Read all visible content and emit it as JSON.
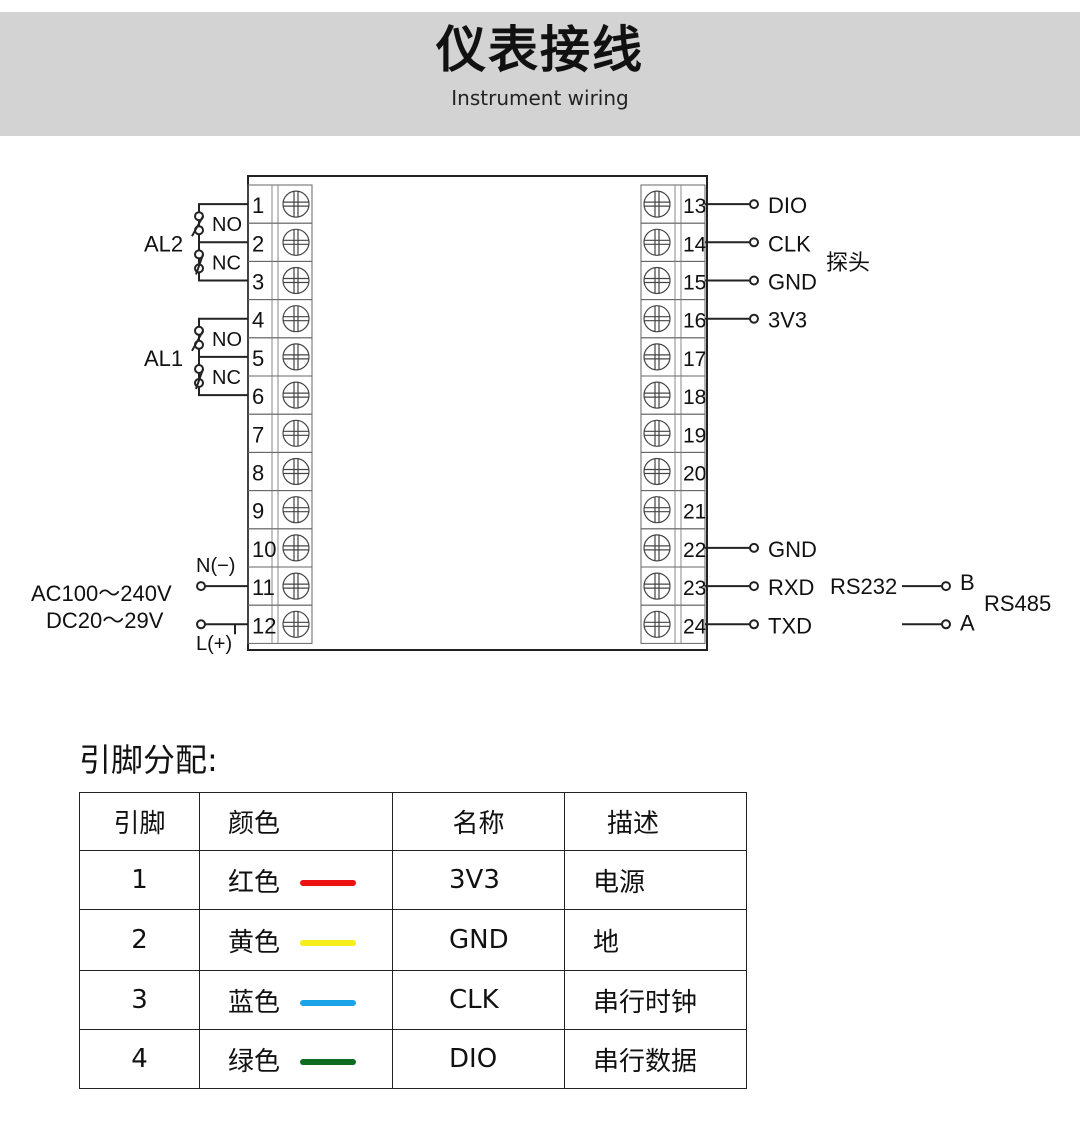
{
  "header": {
    "title": "仪表接线",
    "subtitle": "Instrument wiring"
  },
  "diagram": {
    "left_terminals": [
      "1",
      "2",
      "3",
      "4",
      "5",
      "6",
      "7",
      "8",
      "9",
      "10",
      "11",
      "12"
    ],
    "right_terminals": [
      "13",
      "14",
      "15",
      "16",
      "17",
      "18",
      "19",
      "20",
      "21",
      "22",
      "23",
      "24"
    ],
    "relays": [
      {
        "name": "AL2",
        "no": "NO",
        "nc": "NC"
      },
      {
        "name": "AL1",
        "no": "NO",
        "nc": "NC"
      }
    ],
    "power": {
      "neutral": "N(−)",
      "line": "L(+)",
      "ac": "AC100～240V",
      "dc": "DC20～29V"
    },
    "right_labels": {
      "13": "DIO",
      "14": "CLK",
      "15": "GND",
      "16": "3V3",
      "22": "GND",
      "23": "RXD",
      "24": "TXD"
    },
    "probe_label": "探头",
    "rs232": "RS232",
    "rs485": "RS485",
    "rs485_b": "B",
    "rs485_a": "A"
  },
  "pin_table": {
    "title": "引脚分配:",
    "headers": [
      "引脚",
      "颜色",
      "名称",
      "描述"
    ],
    "rows": [
      {
        "pin": "1",
        "color": "红色",
        "hex": "#ee1111",
        "name": "3V3",
        "desc": "电源"
      },
      {
        "pin": "2",
        "color": "黄色",
        "hex": "#f5ee1a",
        "name": "GND",
        "desc": "地"
      },
      {
        "pin": "3",
        "color": "蓝色",
        "hex": "#1aa4e8",
        "name": "CLK",
        "desc": "串行时钟"
      },
      {
        "pin": "4",
        "color": "绿色",
        "hex": "#0d6b22",
        "name": "DIO",
        "desc": "串行数据"
      }
    ]
  }
}
